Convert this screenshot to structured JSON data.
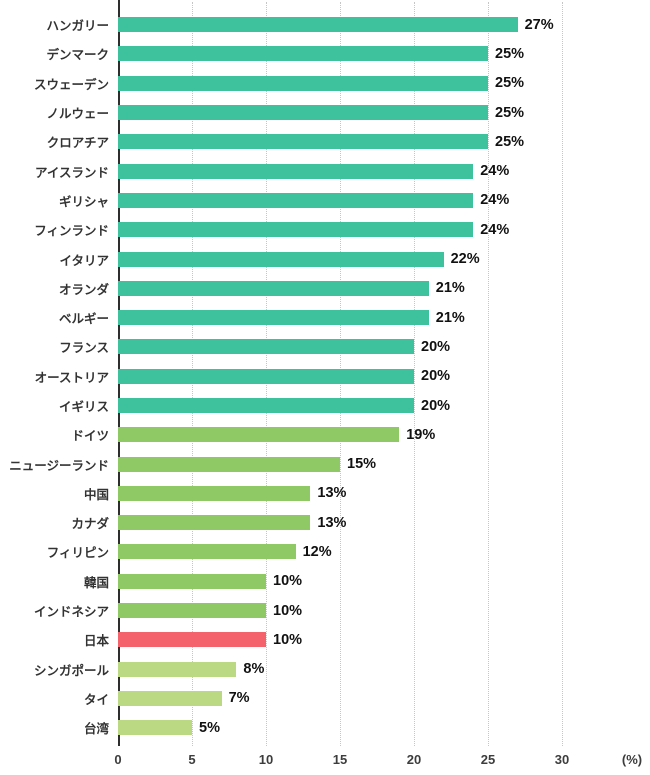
{
  "chart_data": {
    "type": "bar",
    "orientation": "horizontal",
    "title": "",
    "xlabel": "(%)",
    "xlim": [
      0,
      30
    ],
    "x_ticks": [
      0,
      5,
      10,
      15,
      20,
      25,
      30
    ],
    "x_tick_labels": [
      "0",
      "5",
      "10",
      "15",
      "20",
      "25",
      "30"
    ],
    "grid": "vertical-dotted",
    "legend": "none",
    "categories": [
      "ハンガリー",
      "デンマーク",
      "スウェーデン",
      "ノルウェー",
      "クロアチア",
      "アイスランド",
      "ギリシャ",
      "フィンランド",
      "イタリア",
      "オランダ",
      "ベルギー",
      "フランス",
      "オーストリア",
      "イギリス",
      "ドイツ",
      "ニュージーランド",
      "中国",
      "カナダ",
      "フィリピン",
      "韓国",
      "インドネシア",
      "日本",
      "シンガポール",
      "タイ",
      "台湾"
    ],
    "values": [
      27,
      25,
      25,
      25,
      25,
      24,
      24,
      24,
      22,
      21,
      21,
      20,
      20,
      20,
      19,
      15,
      13,
      13,
      12,
      10,
      10,
      10,
      8,
      7,
      5
    ],
    "value_labels": [
      "27%",
      "25%",
      "25%",
      "25%",
      "25%",
      "24%",
      "24%",
      "24%",
      "22%",
      "21%",
      "21%",
      "20%",
      "20%",
      "20%",
      "19%",
      "15%",
      "13%",
      "13%",
      "12%",
      "10%",
      "10%",
      "10%",
      "8%",
      "7%",
      "5%"
    ],
    "bar_colors": [
      "#3EC29D",
      "#3EC29D",
      "#3EC29D",
      "#3EC29D",
      "#3EC29D",
      "#3EC29D",
      "#3EC29D",
      "#3EC29D",
      "#3EC29D",
      "#3EC29D",
      "#3EC29D",
      "#3EC29D",
      "#3EC29D",
      "#3EC29D",
      "#8FC965",
      "#8FC965",
      "#8FC965",
      "#8FC965",
      "#8FC965",
      "#8FC965",
      "#8FC965",
      "#F4636C",
      "#BAD982",
      "#BAD982",
      "#BAD982"
    ],
    "palette": {
      "teal": "#3EC29D",
      "green": "#8FC965",
      "light_green": "#BAD982",
      "red": "#F4636C"
    }
  }
}
